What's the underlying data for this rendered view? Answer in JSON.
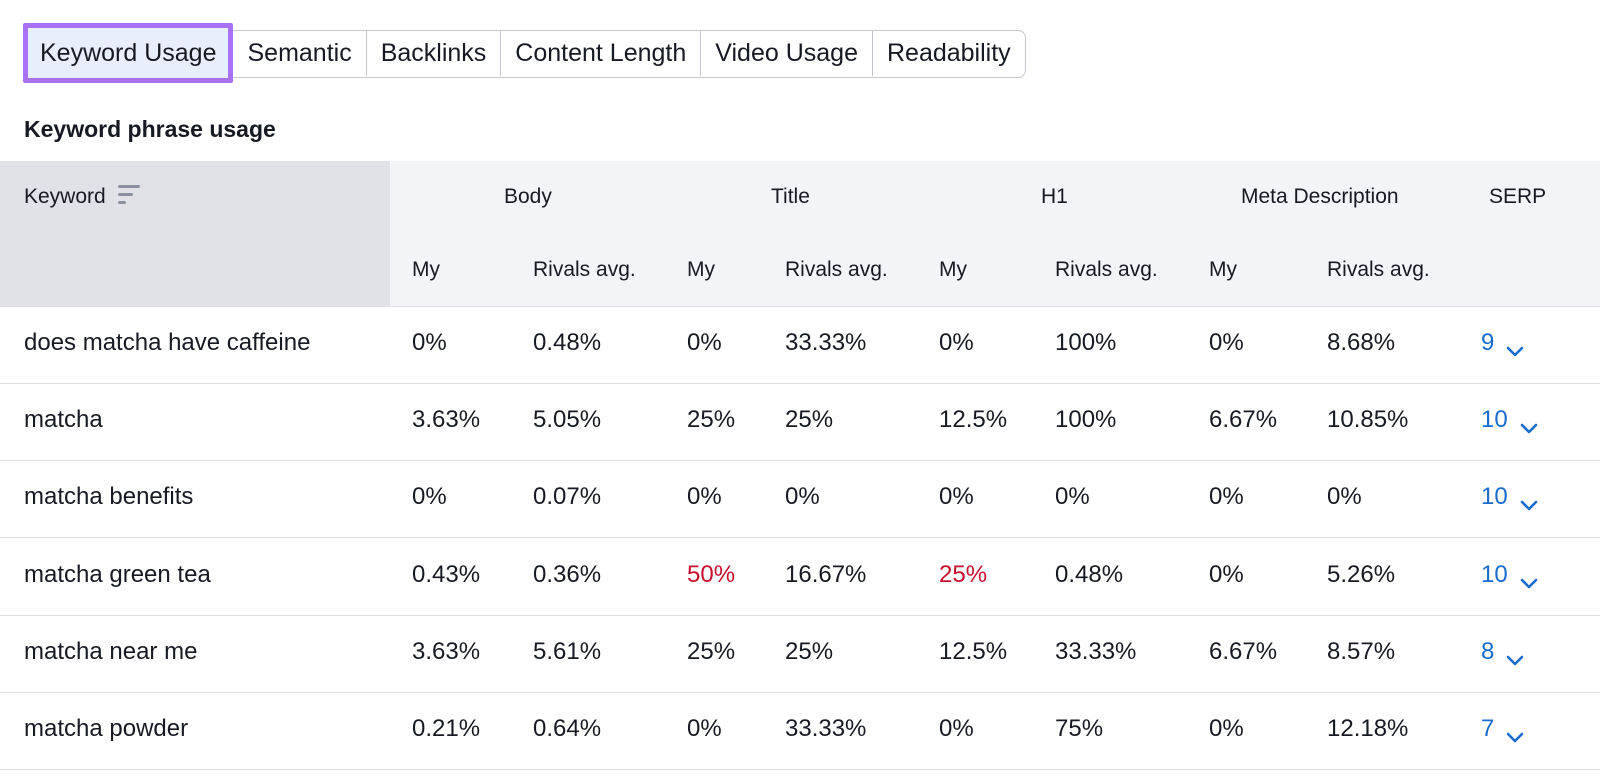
{
  "tabs": [
    {
      "label": "Keyword Usage"
    },
    {
      "label": "Semantic"
    },
    {
      "label": "Backlinks"
    },
    {
      "label": "Content Length"
    },
    {
      "label": "Video Usage"
    },
    {
      "label": "Readability"
    }
  ],
  "active_tab": "Keyword Usage",
  "section_title": "Keyword phrase usage",
  "table": {
    "headers": {
      "keyword": "Keyword",
      "body": "Body",
      "title": "Title",
      "h1": "H1",
      "meta": "Meta Description",
      "serp": "SERP",
      "my": "My",
      "rivals": "Rivals avg."
    },
    "rows": [
      {
        "keyword": "does matcha have caffeine",
        "body_my": "0%",
        "body_rivals": "0.48%",
        "title_my": "0%",
        "title_rivals": "33.33%",
        "h1_my": "0%",
        "h1_rivals": "100%",
        "meta_my": "0%",
        "meta_rivals": "8.68%",
        "serp": "9"
      },
      {
        "keyword": "matcha",
        "body_my": "3.63%",
        "body_rivals": "5.05%",
        "title_my": "25%",
        "title_rivals": "25%",
        "h1_my": "12.5%",
        "h1_rivals": "100%",
        "meta_my": "6.67%",
        "meta_rivals": "10.85%",
        "serp": "10"
      },
      {
        "keyword": "matcha benefits",
        "body_my": "0%",
        "body_rivals": "0.07%",
        "title_my": "0%",
        "title_rivals": "0%",
        "h1_my": "0%",
        "h1_rivals": "0%",
        "meta_my": "0%",
        "meta_rivals": "0%",
        "serp": "10"
      },
      {
        "keyword": "matcha green tea",
        "body_my": "0.43%",
        "body_rivals": "0.36%",
        "title_my": "50%",
        "title_rivals": "16.67%",
        "h1_my": "25%",
        "h1_rivals": "0.48%",
        "meta_my": "0%",
        "meta_rivals": "5.26%",
        "serp": "10",
        "highlight": [
          "title_my",
          "h1_my"
        ]
      },
      {
        "keyword": "matcha near me",
        "body_my": "3.63%",
        "body_rivals": "5.61%",
        "title_my": "25%",
        "title_rivals": "25%",
        "h1_my": "12.5%",
        "h1_rivals": "33.33%",
        "meta_my": "6.67%",
        "meta_rivals": "8.57%",
        "serp": "8"
      },
      {
        "keyword": "matcha powder",
        "body_my": "0.21%",
        "body_rivals": "0.64%",
        "title_my": "0%",
        "title_rivals": "33.33%",
        "h1_my": "0%",
        "h1_rivals": "75%",
        "meta_my": "0%",
        "meta_rivals": "12.18%",
        "serp": "7"
      }
    ]
  },
  "colors": {
    "active_tab_outline": "#a972f5",
    "warning_value": "#c8102e",
    "link": "#1a6ccc"
  },
  "icons": {
    "sort": "sort-icon",
    "expand": "chevron-down-icon"
  }
}
